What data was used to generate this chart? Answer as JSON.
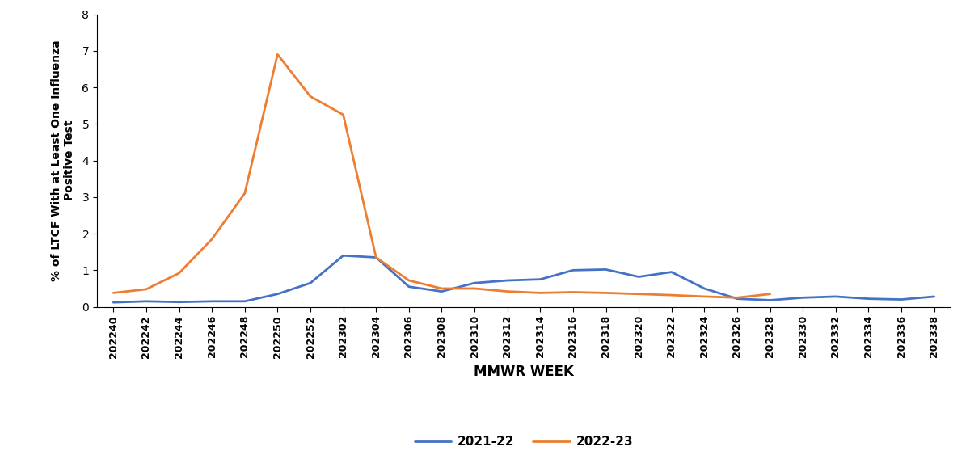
{
  "x_labels": [
    "202240",
    "202242",
    "202244",
    "202246",
    "202248",
    "202250",
    "202252",
    "202302",
    "202304",
    "202306",
    "202308",
    "202310",
    "202312",
    "202314",
    "202316",
    "202318",
    "202320",
    "202322",
    "202324",
    "202326",
    "202328",
    "202330",
    "202332",
    "202334",
    "202336",
    "202338"
  ],
  "blue_2122": [
    0.12,
    0.15,
    0.13,
    0.15,
    0.15,
    0.35,
    0.65,
    1.4,
    1.35,
    0.55,
    0.42,
    0.65,
    0.72,
    0.75,
    1.0,
    1.02,
    0.82,
    0.95,
    0.5,
    0.22,
    0.18,
    0.25,
    0.28,
    0.22,
    0.2,
    0.28
  ],
  "orange_2223": [
    0.38,
    0.48,
    0.92,
    1.85,
    3.1,
    6.9,
    5.75,
    5.25,
    1.35,
    0.72,
    0.5,
    0.5,
    0.42,
    0.38,
    0.4,
    0.38,
    0.35,
    0.32,
    0.28,
    0.25,
    0.35,
    null,
    null,
    null,
    null,
    null
  ],
  "blue_color": "#4472c4",
  "orange_color": "#ed7d31",
  "ylabel": "% of LTCF With at Least One Influenza\nPositive Test",
  "xlabel": "MMWR WEEK",
  "ylim": [
    0,
    8
  ],
  "yticks": [
    0,
    1,
    2,
    3,
    4,
    5,
    6,
    7,
    8
  ],
  "legend_2122": "2021-22",
  "legend_2223": "2022-23",
  "line_width": 2.0
}
